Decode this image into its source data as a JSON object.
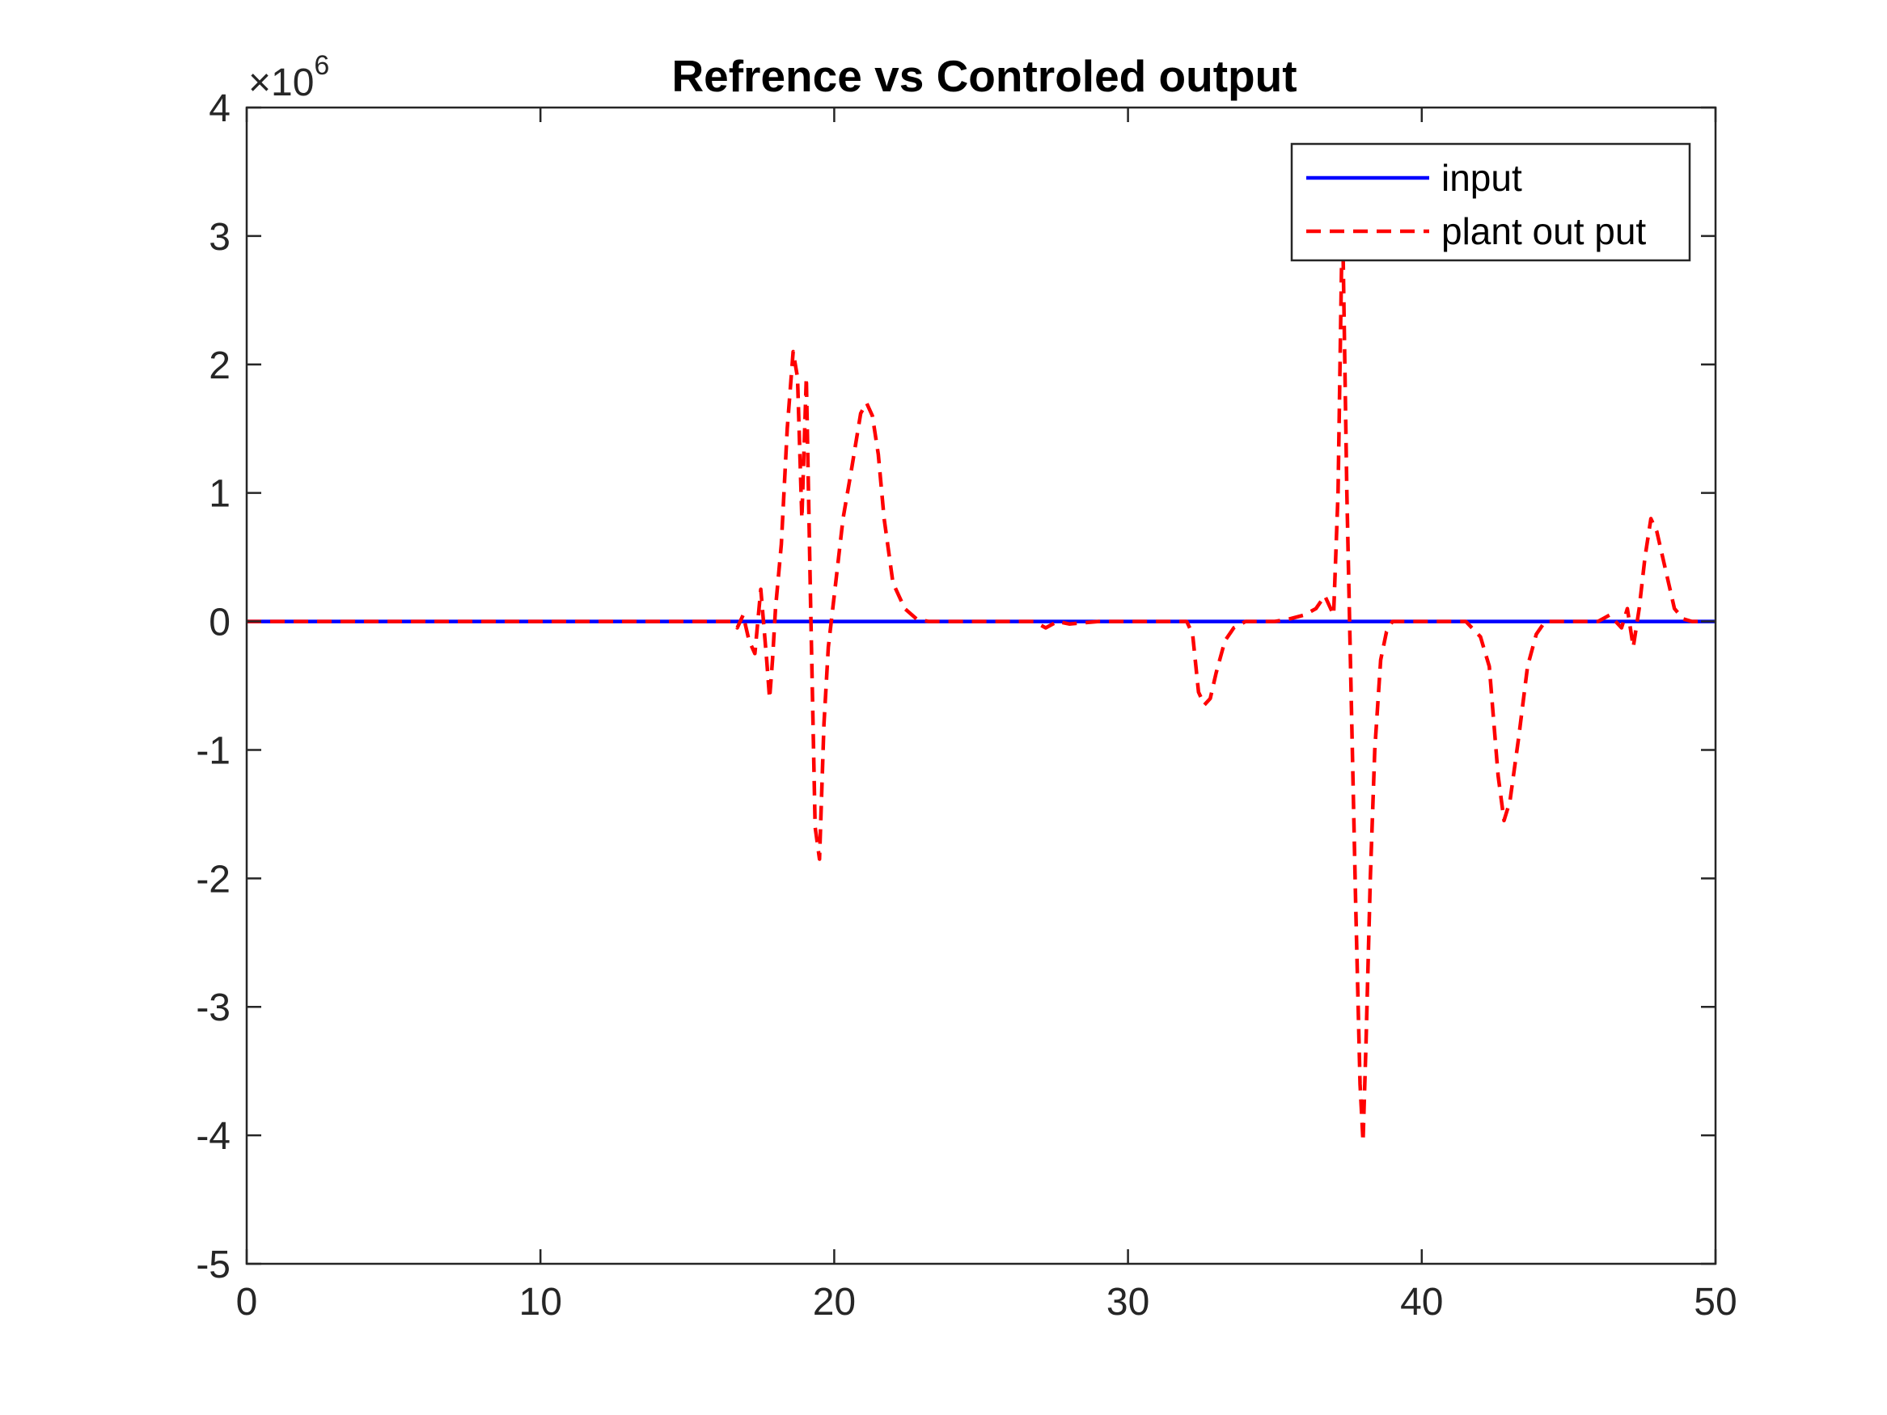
{
  "chart_data": {
    "type": "line",
    "title": "Refrence vs Controled output",
    "xlabel": "",
    "ylabel": "",
    "xlim": [
      0,
      50
    ],
    "ylim": [
      -5,
      4
    ],
    "y_exponent_prefix": "×10",
    "y_exponent": "6",
    "y_scale_factor": 1000000,
    "xticks": [
      0,
      10,
      20,
      30,
      40,
      50
    ],
    "yticks": [
      -5,
      -4,
      -3,
      -2,
      -1,
      0,
      1,
      2,
      3,
      4
    ],
    "xtick_labels": [
      "0",
      "10",
      "20",
      "30",
      "40",
      "50"
    ],
    "ytick_labels": [
      "-5",
      "-4",
      "-3",
      "-2",
      "-1",
      "0",
      "1",
      "2",
      "3",
      "4"
    ],
    "grid": false,
    "legend": {
      "placement": "top-right",
      "entries": [
        "input",
        "plant out put"
      ]
    },
    "series": [
      {
        "name": "input",
        "color": "#0000ff",
        "style": "solid",
        "x": [
          0,
          50
        ],
        "y": [
          0,
          0
        ]
      },
      {
        "name": "plant out put",
        "color": "#ff0000",
        "style": "dashed",
        "x": [
          0,
          16.5,
          16.7,
          16.9,
          17.1,
          17.3,
          17.5,
          17.7,
          17.8,
          17.9,
          18.0,
          18.2,
          18.4,
          18.6,
          18.75,
          18.9,
          19.05,
          19.2,
          19.35,
          19.5,
          19.65,
          19.8,
          20.0,
          20.3,
          20.6,
          20.9,
          21.1,
          21.3,
          21.5,
          21.7,
          22.0,
          22.4,
          22.8,
          23.2,
          24,
          25,
          26,
          26.8,
          27.2,
          27.6,
          28,
          29,
          30,
          31,
          32,
          32.2,
          32.4,
          32.6,
          32.8,
          33.0,
          33.3,
          33.6,
          34.0,
          34.5,
          35,
          35.5,
          36,
          36.4,
          36.7,
          37.0,
          37.15,
          37.3,
          37.45,
          37.6,
          37.75,
          37.9,
          38.0,
          38.1,
          38.25,
          38.4,
          38.6,
          38.8,
          39.0,
          39.3,
          39.7,
          40.2,
          40.8,
          41.5,
          42.0,
          42.3,
          42.6,
          42.8,
          43.0,
          43.3,
          43.6,
          43.9,
          44.2,
          44.6,
          45.2,
          46.0,
          46.4,
          46.8,
          47.0,
          47.2,
          47.4,
          47.6,
          47.8,
          48.0,
          48.3,
          48.6,
          48.9,
          49.2,
          49.6
        ],
        "y": [
          0,
          0,
          -0.05,
          0.05,
          -0.15,
          -0.25,
          0.25,
          -0.3,
          -0.6,
          -0.3,
          0.1,
          0.6,
          1.5,
          2.1,
          1.9,
          0.8,
          1.9,
          0.1,
          -1.6,
          -1.85,
          -0.8,
          -0.2,
          0.2,
          0.8,
          1.2,
          1.62,
          1.7,
          1.6,
          1.3,
          0.8,
          0.3,
          0.1,
          0.02,
          0,
          0,
          0,
          0,
          0,
          -0.05,
          0,
          -0.02,
          0,
          0,
          0,
          0,
          -0.1,
          -0.55,
          -0.65,
          -0.6,
          -0.4,
          -0.15,
          -0.05,
          0,
          0,
          0,
          0.02,
          0.05,
          0.1,
          0.2,
          0.05,
          1.0,
          3.2,
          1.0,
          -0.6,
          -2.2,
          -3.6,
          -4.05,
          -3.3,
          -2.0,
          -1.0,
          -0.3,
          -0.08,
          0,
          0,
          0,
          0,
          0,
          0,
          -0.12,
          -0.35,
          -1.2,
          -1.55,
          -1.4,
          -0.9,
          -0.35,
          -0.1,
          0,
          0,
          0,
          0,
          0.05,
          -0.05,
          0.1,
          -0.2,
          0.1,
          0.5,
          0.8,
          0.7,
          0.4,
          0.1,
          0.02,
          0,
          0
        ]
      }
    ]
  },
  "colors": {
    "input": "#0000ff",
    "plant_out_put": "#ff0000",
    "axes": "#262626",
    "background": "#ffffff"
  }
}
